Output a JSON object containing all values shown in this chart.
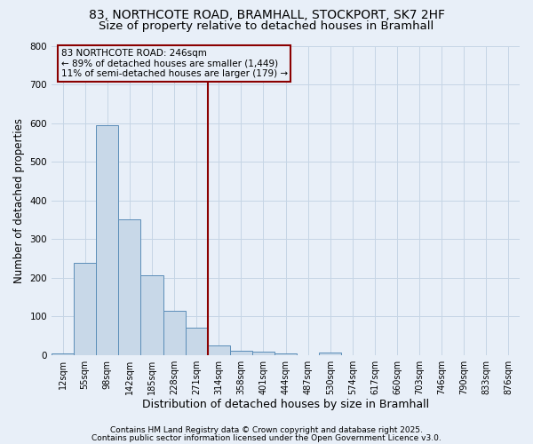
{
  "title_line1": "83, NORTHCOTE ROAD, BRAMHALL, STOCKPORT, SK7 2HF",
  "title_line2": "Size of property relative to detached houses in Bramhall",
  "xlabel": "Distribution of detached houses by size in Bramhall",
  "ylabel": "Number of detached properties",
  "categories": [
    "12sqm",
    "55sqm",
    "98sqm",
    "142sqm",
    "185sqm",
    "228sqm",
    "271sqm",
    "314sqm",
    "358sqm",
    "401sqm",
    "444sqm",
    "487sqm",
    "530sqm",
    "574sqm",
    "617sqm",
    "660sqm",
    "703sqm",
    "746sqm",
    "790sqm",
    "833sqm",
    "876sqm"
  ],
  "values": [
    5,
    238,
    595,
    350,
    205,
    115,
    70,
    25,
    10,
    8,
    4,
    0,
    7,
    0,
    0,
    0,
    0,
    0,
    0,
    0,
    0
  ],
  "bar_color": "#c8d8e8",
  "bar_edge_color": "#5b8db8",
  "vline_x_idx": 6,
  "vline_color": "#8b0000",
  "annotation_text": "83 NORTHCOTE ROAD: 246sqm\n← 89% of detached houses are smaller (1,449)\n11% of semi-detached houses are larger (179) →",
  "annotation_box_color": "#8b0000",
  "ylim": [
    0,
    800
  ],
  "yticks": [
    0,
    100,
    200,
    300,
    400,
    500,
    600,
    700,
    800
  ],
  "grid_color": "#c5d5e5",
  "bg_color": "#e8eff8",
  "footer_line1": "Contains HM Land Registry data © Crown copyright and database right 2025.",
  "footer_line2": "Contains public sector information licensed under the Open Government Licence v3.0.",
  "title_fontsize": 10,
  "subtitle_fontsize": 9.5,
  "tick_fontsize": 7,
  "ylabel_fontsize": 8.5,
  "xlabel_fontsize": 9,
  "footer_fontsize": 6.5,
  "annotation_fontsize": 7.5
}
